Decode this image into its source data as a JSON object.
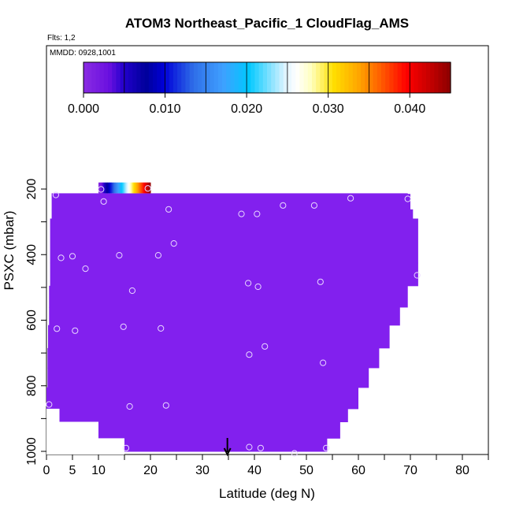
{
  "chart_data": {
    "type": "heatmap",
    "title": "ATOM3 Northeast_Pacific_1 CloudFlag_AMS",
    "subtitle_flts": "Flts: 1,2",
    "subtitle_mmdd": "MMDD: 0928,1001",
    "xlabel": "Latitude (deg N)",
    "ylabel": "PSXC (mbar)",
    "xlim": [
      0,
      85
    ],
    "ylim": [
      1000,
      0
    ],
    "x_ticks": [
      "0",
      "5",
      "10",
      "20",
      "30",
      "40",
      "50",
      "60",
      "70",
      "80"
    ],
    "y_ticks": [
      "200",
      "400",
      "600",
      "800",
      "1000"
    ],
    "colorbar": {
      "range": [
        0,
        0.045
      ],
      "tick_labels": [
        "0.000",
        "0.010",
        "0.020",
        "0.030",
        "0.040"
      ],
      "tick_values": [
        0,
        0.01,
        0.02,
        0.03,
        0.04
      ]
    },
    "fill_value": 0.0,
    "fill_color": "#8220ee",
    "curtain_profile": [
      {
        "p": 215,
        "x0": 1.0,
        "x1": 69.5
      },
      {
        "p": 262,
        "x0": 1.0,
        "x1": 70.0
      },
      {
        "p": 290,
        "x0": 1.0,
        "x1": 70.5
      },
      {
        "p": 425,
        "x0": 0.7,
        "x1": 71.5
      },
      {
        "p": 495,
        "x0": 0.7,
        "x1": 71.5
      },
      {
        "p": 560,
        "x0": 0.5,
        "x1": 69.5
      },
      {
        "p": 615,
        "x0": 0.5,
        "x1": 68.0
      },
      {
        "p": 685,
        "x0": 0.3,
        "x1": 66.0
      },
      {
        "p": 745,
        "x0": 0.2,
        "x1": 64.0
      },
      {
        "p": 805,
        "x0": 0.2,
        "x1": 62.0
      },
      {
        "p": 870,
        "x0": 0.0,
        "x1": 60.0
      },
      {
        "p": 910,
        "x0": 0.0,
        "x1": 58.0
      },
      {
        "p": 960,
        "x0": 0.0,
        "x1": 56.5
      },
      {
        "p": 1000,
        "x0": 0.0,
        "x1": 54.0
      }
    ],
    "bottom_cutouts": [
      {
        "x0": 0.0,
        "x1": 2.5,
        "p0": 870,
        "p1": 1000
      },
      {
        "x0": 2.5,
        "x1": 10.0,
        "p0": 910,
        "p1": 1000
      },
      {
        "x0": 10.0,
        "x1": 15.0,
        "p0": 960,
        "p1": 1000
      }
    ],
    "top_edge_p": 213,
    "legend_strip": {
      "x0": 10.0,
      "x1": 20.0,
      "p0": 180,
      "p1": 213
    },
    "points": [
      {
        "x": 1.8,
        "y": 218
      },
      {
        "x": 10.5,
        "y": 201
      },
      {
        "x": 11.0,
        "y": 238
      },
      {
        "x": 19.5,
        "y": 198
      },
      {
        "x": 23.5,
        "y": 262
      },
      {
        "x": 37.5,
        "y": 276
      },
      {
        "x": 40.5,
        "y": 276
      },
      {
        "x": 45.5,
        "y": 250
      },
      {
        "x": 51.5,
        "y": 250
      },
      {
        "x": 58.5,
        "y": 228
      },
      {
        "x": 69.5,
        "y": 230
      },
      {
        "x": 2.8,
        "y": 410
      },
      {
        "x": 5.0,
        "y": 405
      },
      {
        "x": 7.5,
        "y": 443
      },
      {
        "x": 14.0,
        "y": 402
      },
      {
        "x": 21.5,
        "y": 402
      },
      {
        "x": 24.5,
        "y": 366
      },
      {
        "x": 16.5,
        "y": 510
      },
      {
        "x": 38.8,
        "y": 487
      },
      {
        "x": 40.7,
        "y": 498
      },
      {
        "x": 52.7,
        "y": 483
      },
      {
        "x": 71.3,
        "y": 463
      },
      {
        "x": 2.0,
        "y": 626
      },
      {
        "x": 5.5,
        "y": 632
      },
      {
        "x": 14.8,
        "y": 620
      },
      {
        "x": 22.0,
        "y": 625
      },
      {
        "x": 42.0,
        "y": 680
      },
      {
        "x": 39.0,
        "y": 705
      },
      {
        "x": 53.2,
        "y": 730
      },
      {
        "x": 0.5,
        "y": 857
      },
      {
        "x": 16.0,
        "y": 863
      },
      {
        "x": 23.0,
        "y": 860
      },
      {
        "x": 15.3,
        "y": 990
      },
      {
        "x": 39.0,
        "y": 987
      },
      {
        "x": 41.2,
        "y": 990
      },
      {
        "x": 47.7,
        "y": 1006
      },
      {
        "x": 53.8,
        "y": 990
      }
    ],
    "arrow_x": 34.8
  }
}
